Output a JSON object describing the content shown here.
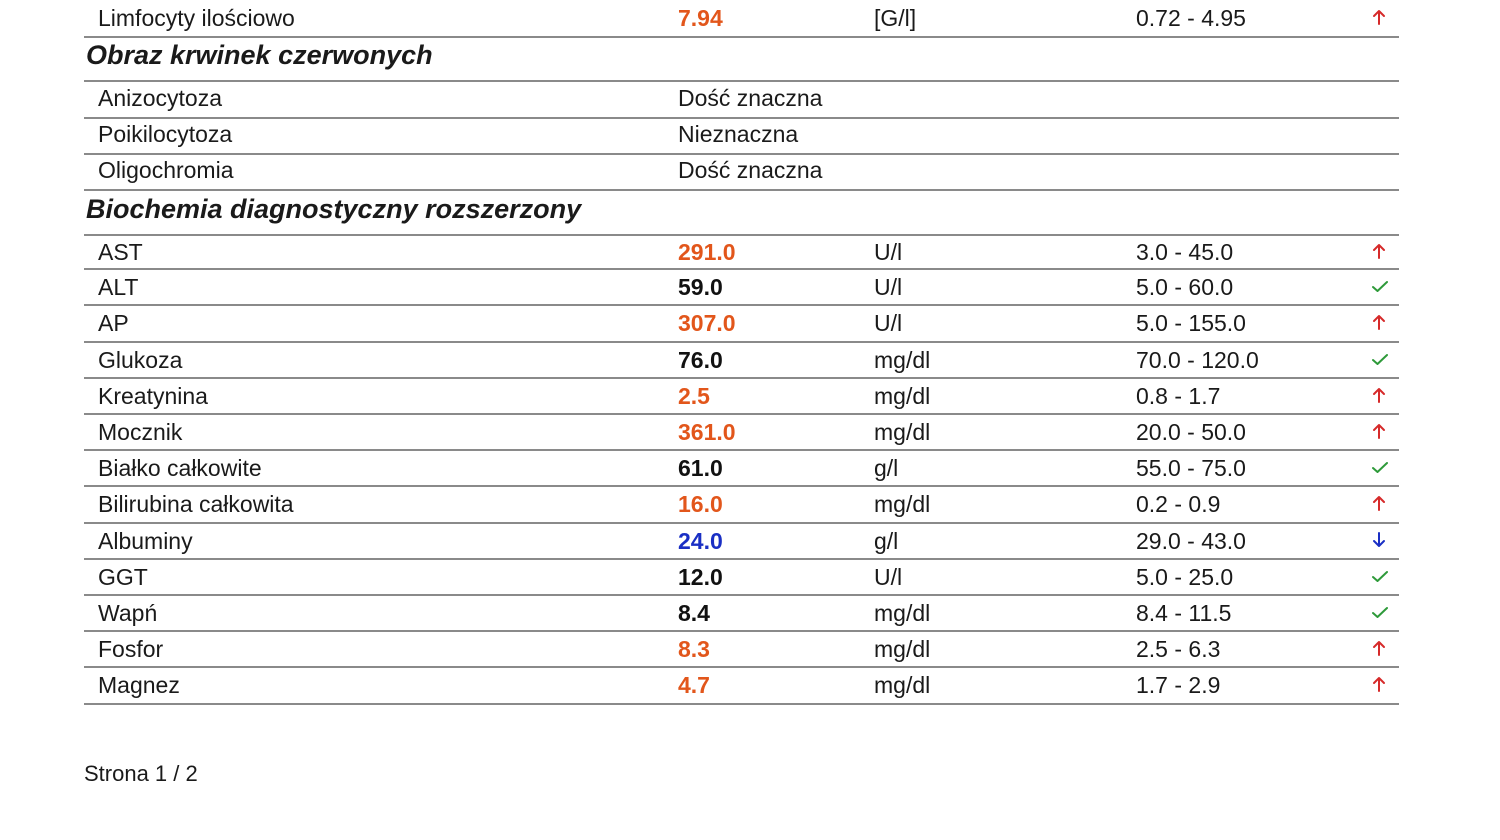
{
  "colors": {
    "high": "#e2561b",
    "low": "#1a2fc4",
    "normal": "#111111",
    "flag_up": "#d62a2a",
    "flag_ok": "#2e9a3a",
    "flag_down": "#1a2fc4"
  },
  "top_row": {
    "name": "Limfocyty ilościowo",
    "value": "7.94",
    "unit": "[G/l]",
    "ref": "0.72 - 4.95",
    "status": "high",
    "flag_icon": "arrow-up-icon"
  },
  "section_rbc": {
    "title": "Obraz krwinek czerwonych",
    "rows": [
      {
        "name": "Anizocytoza",
        "result": "Dość znaczna"
      },
      {
        "name": "Poikilocytoza",
        "result": "Nieznaczna"
      },
      {
        "name": "Oligochromia",
        "result": "Dość znaczna"
      }
    ]
  },
  "section_bio": {
    "title": "Biochemia diagnostyczny rozszerzony",
    "rows": [
      {
        "name": "AST",
        "value": "291.0",
        "unit": "U/l",
        "ref": "3.0 - 45.0",
        "status": "high",
        "flag_icon": "arrow-up-icon"
      },
      {
        "name": "ALT",
        "value": "59.0",
        "unit": "U/l",
        "ref": "5.0 - 60.0",
        "status": "normal",
        "flag_icon": "check-icon"
      },
      {
        "name": "AP",
        "value": "307.0",
        "unit": "U/l",
        "ref": "5.0 - 155.0",
        "status": "high",
        "flag_icon": "arrow-up-icon"
      },
      {
        "name": "Glukoza",
        "value": "76.0",
        "unit": "mg/dl",
        "ref": "70.0 - 120.0",
        "status": "normal",
        "flag_icon": "check-icon"
      },
      {
        "name": "Kreatynina",
        "value": "2.5",
        "unit": "mg/dl",
        "ref": "0.8 - 1.7",
        "status": "high",
        "flag_icon": "arrow-up-icon"
      },
      {
        "name": "Mocznik",
        "value": "361.0",
        "unit": "mg/dl",
        "ref": "20.0 - 50.0",
        "status": "high",
        "flag_icon": "arrow-up-icon"
      },
      {
        "name": "Białko całkowite",
        "value": "61.0",
        "unit": "g/l",
        "ref": "55.0 - 75.0",
        "status": "normal",
        "flag_icon": "check-icon"
      },
      {
        "name": "Bilirubina całkowita",
        "value": "16.0",
        "unit": "mg/dl",
        "ref": "0.2 - 0.9",
        "status": "high",
        "flag_icon": "arrow-up-icon"
      },
      {
        "name": "Albuminy",
        "value": "24.0",
        "unit": "g/l",
        "ref": "29.0 - 43.0",
        "status": "low",
        "flag_icon": "arrow-down-icon"
      },
      {
        "name": "GGT",
        "value": "12.0",
        "unit": "U/l",
        "ref": "5.0 - 25.0",
        "status": "normal",
        "flag_icon": "check-icon"
      },
      {
        "name": "Wapń",
        "value": "8.4",
        "unit": "mg/dl",
        "ref": "8.4 - 11.5",
        "status": "normal",
        "flag_icon": "check-icon"
      },
      {
        "name": "Fosfor",
        "value": "8.3",
        "unit": "mg/dl",
        "ref": "2.5 - 6.3",
        "status": "high",
        "flag_icon": "arrow-up-icon"
      },
      {
        "name": "Magnez",
        "value": "4.7",
        "unit": "mg/dl",
        "ref": "1.7 - 2.9",
        "status": "high",
        "flag_icon": "arrow-up-icon"
      }
    ]
  },
  "footer": {
    "page_label": "Strona 1 / 2"
  }
}
